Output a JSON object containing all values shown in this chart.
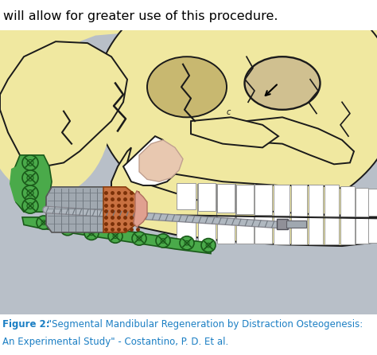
{
  "title_line1": "Figure 2:",
  "title_rest": " \"Segmental Mandibular Regeneration by Distraction Osteogenesis:",
  "title_line2": "An Experimental Study\" - Costantino, P. D. Et al.",
  "header_text": "will allow for greater use of this procedure.",
  "title_color": "#1b7fc4",
  "header_color": "#000000",
  "bg_color": "#ffffff",
  "image_bg": "#b8bfc8",
  "skull_fill": "#f0e8a0",
  "skull_edge": "#1a1a1a",
  "title_fontsize": 8.5,
  "header_fontsize": 11.5,
  "fig_width": 4.74,
  "fig_height": 4.46,
  "dpi": 100
}
